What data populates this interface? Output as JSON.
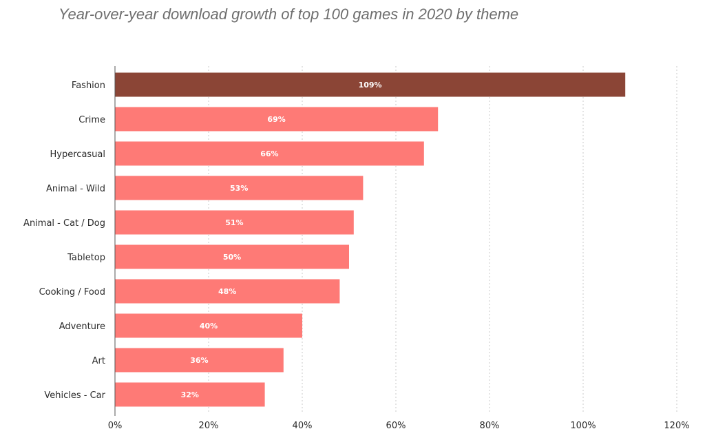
{
  "chart_data": {
    "type": "bar",
    "orientation": "horizontal",
    "title": "Year-over-year download growth of top 100 games in 2020 by theme",
    "xlabel": "",
    "ylabel": "",
    "categories": [
      "Fashion",
      "Crime",
      "Hypercasual",
      "Animal - Wild",
      "Animal - Cat / Dog",
      "Tabletop",
      "Cooking / Food",
      "Adventure",
      "Art",
      "Vehicles - Car"
    ],
    "values": [
      109,
      69,
      66,
      53,
      51,
      50,
      48,
      40,
      36,
      32
    ],
    "value_labels": [
      "109%",
      "69%",
      "66%",
      "53%",
      "51%",
      "50%",
      "48%",
      "40%",
      "36%",
      "32%"
    ],
    "xlim": [
      0,
      120
    ],
    "x_ticks": [
      0,
      20,
      40,
      60,
      80,
      100,
      120
    ],
    "x_tick_labels": [
      "0%",
      "20%",
      "40%",
      "60%",
      "80%",
      "100%",
      "120%"
    ],
    "grid": "vertical dotted",
    "legend": "none",
    "colors": {
      "highlight": "#8b4536",
      "default": "#fe7a76",
      "grid": "#c8c8c8",
      "axis": "#555555"
    }
  }
}
